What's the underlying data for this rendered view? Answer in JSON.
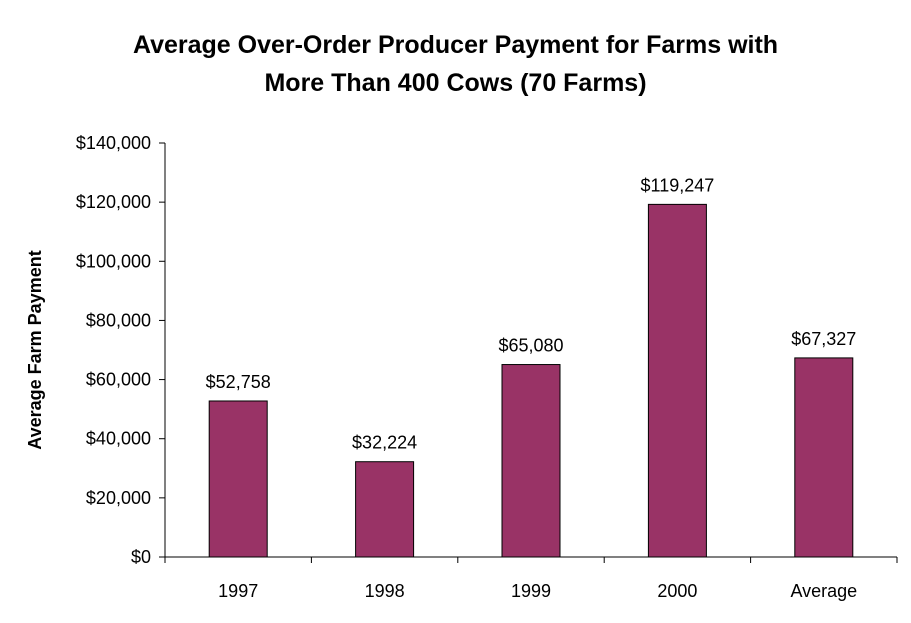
{
  "chart_data": {
    "type": "bar",
    "title_line1": "Average Over-Order Producer Payment for Farms with",
    "title_line2": "More Than 400 Cows (70 Farms)",
    "xlabel": "",
    "ylabel": "Average Farm Payment",
    "categories": [
      "1997",
      "1998",
      "1999",
      "2000",
      "Average"
    ],
    "values": [
      52758,
      32224,
      65080,
      119247,
      67327
    ],
    "data_labels": [
      "$52,758",
      "$32,224",
      "$65,080",
      "$119,247",
      "$67,327"
    ],
    "y_ticks": [
      0,
      20000,
      40000,
      60000,
      80000,
      100000,
      120000,
      140000
    ],
    "y_tick_labels": [
      "$0",
      "$20,000",
      "$40,000",
      "$60,000",
      "$80,000",
      "$100,000",
      "$120,000",
      "$140,000"
    ],
    "ylim": [
      0,
      140000
    ],
    "grid": false,
    "legend": "none",
    "colors": {
      "bar_fill": "#993366",
      "bar_stroke": "#000000",
      "axis": "#000000"
    }
  }
}
